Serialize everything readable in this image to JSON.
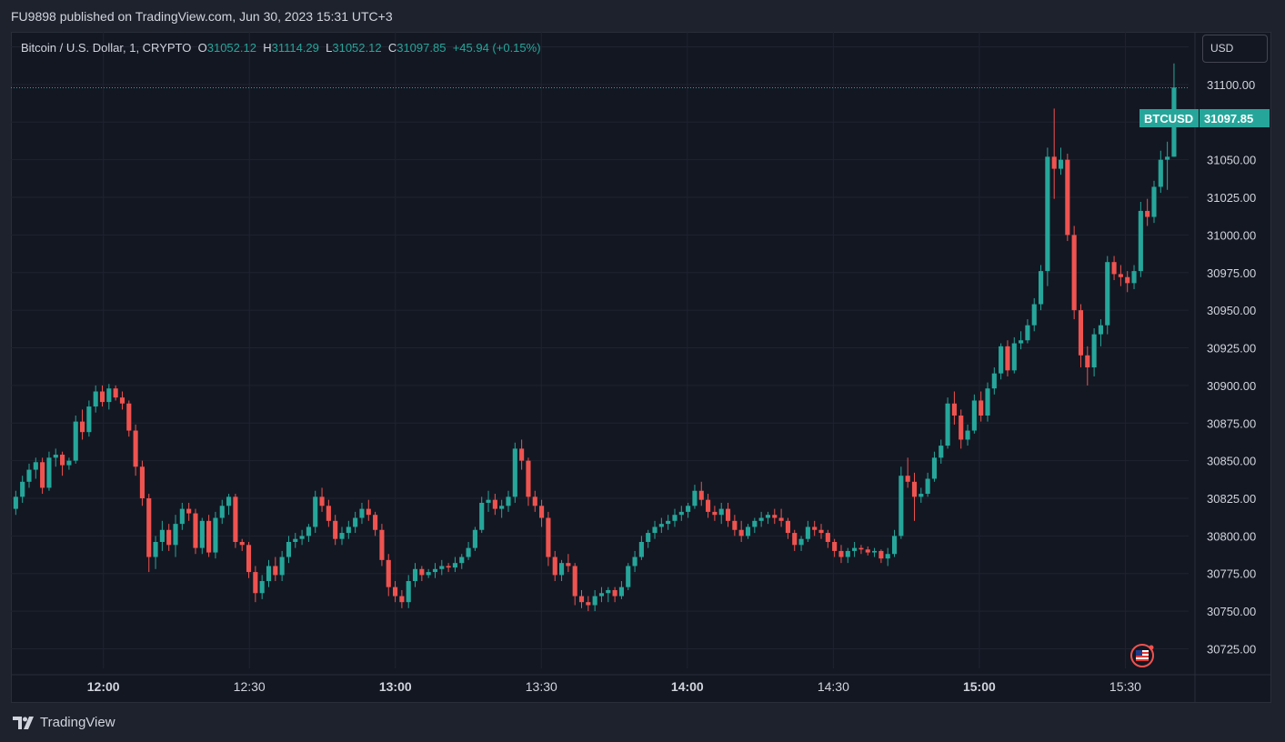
{
  "header": {
    "published_text": "FU9898 published on TradingView.com, Jun 30, 2023 15:31 UTC+3"
  },
  "legend": {
    "symbol": "Bitcoin / U.S. Dollar, 1, CRYPTO",
    "open_label": "O",
    "open": "31052.12",
    "high_label": "H",
    "high": "31114.29",
    "low_label": "L",
    "low": "31052.12",
    "close_label": "C",
    "close": "31097.85",
    "change": "+45.94 (+0.15%)"
  },
  "currency_button": "USD",
  "price_tag": {
    "ticker": "BTCUSD",
    "price": "31097.85"
  },
  "footer": {
    "brand": "TradingView"
  },
  "colors": {
    "up": "#26a69a",
    "down": "#ef5350",
    "background": "#131722",
    "grid": "#1f2330",
    "text": "#d1d4dc"
  },
  "chart_data": {
    "type": "candlestick",
    "xlabel": "",
    "ylabel": "",
    "ylim": [
      30712,
      31135
    ],
    "y_ticks": [
      30725,
      30750,
      30775,
      30800,
      30825,
      30850,
      30875,
      30900,
      30925,
      30950,
      30975,
      31000,
      31025,
      31050,
      31075,
      31100,
      31125
    ],
    "y_tick_labels": [
      "30725.00",
      "30750.00",
      "30775.00",
      "30800.00",
      "30825.00",
      "30850.00",
      "30875.00",
      "30900.00",
      "30925.00",
      "30950.00",
      "30975.00",
      "31000.00",
      "31025.00",
      "31050.00",
      "31075.00",
      "31100.00",
      "31125.00"
    ],
    "x_ticks": [
      "12:00",
      "12:30",
      "13:00",
      "13:30",
      "14:00",
      "14:30",
      "15:00",
      "15:30"
    ],
    "x_tick_minutes": [
      0,
      30,
      60,
      90,
      120,
      150,
      180,
      210
    ],
    "x_range_minutes": [
      -19,
      223
    ],
    "last_price": 31097.85,
    "candles_ohlc": [
      [
        30818,
        30830,
        30814,
        30826
      ],
      [
        30826,
        30840,
        30822,
        30836
      ],
      [
        30836,
        30848,
        30832,
        30844
      ],
      [
        30844,
        30852,
        30838,
        30849
      ],
      [
        30849,
        30852,
        30828,
        30832
      ],
      [
        30832,
        30856,
        30830,
        30852
      ],
      [
        30852,
        30858,
        30846,
        30854
      ],
      [
        30854,
        30856,
        30840,
        30847
      ],
      [
        30847,
        30852,
        30844,
        30850
      ],
      [
        30850,
        30880,
        30848,
        30876
      ],
      [
        30876,
        30884,
        30864,
        30869
      ],
      [
        30869,
        30890,
        30866,
        30886
      ],
      [
        30886,
        30900,
        30882,
        30896
      ],
      [
        30896,
        30900,
        30886,
        30889
      ],
      [
        30889,
        30901,
        30884,
        30898
      ],
      [
        30898,
        30900,
        30890,
        30892
      ],
      [
        30892,
        30896,
        30884,
        30888
      ],
      [
        30888,
        30890,
        30866,
        30870
      ],
      [
        30870,
        30874,
        30840,
        30846
      ],
      [
        30846,
        30850,
        30820,
        30825
      ],
      [
        30825,
        30828,
        30776,
        30786
      ],
      [
        30786,
        30800,
        30778,
        30796
      ],
      [
        30796,
        30810,
        30790,
        30804
      ],
      [
        30804,
        30808,
        30790,
        30794
      ],
      [
        30794,
        30814,
        30786,
        30808
      ],
      [
        30808,
        30822,
        30804,
        30818
      ],
      [
        30818,
        30822,
        30810,
        30815
      ],
      [
        30815,
        30818,
        30788,
        30792
      ],
      [
        30792,
        30812,
        30788,
        30810
      ],
      [
        30810,
        30814,
        30786,
        30789
      ],
      [
        30789,
        30816,
        30785,
        30812
      ],
      [
        30812,
        30824,
        30808,
        30820
      ],
      [
        30820,
        30828,
        30814,
        30826
      ],
      [
        30826,
        30828,
        30792,
        30796
      ],
      [
        30796,
        30798,
        30790,
        30794
      ],
      [
        30794,
        30796,
        30772,
        30776
      ],
      [
        30776,
        30780,
        30756,
        30762
      ],
      [
        30762,
        30774,
        30758,
        30770
      ],
      [
        30770,
        30784,
        30766,
        30780
      ],
      [
        30780,
        30786,
        30770,
        30774
      ],
      [
        30774,
        30790,
        30770,
        30786
      ],
      [
        30786,
        30800,
        30782,
        30796
      ],
      [
        30796,
        30802,
        30792,
        30798
      ],
      [
        30798,
        30804,
        30794,
        30800
      ],
      [
        30800,
        30808,
        30796,
        30806
      ],
      [
        30806,
        30830,
        30802,
        30826
      ],
      [
        30826,
        30832,
        30816,
        30820
      ],
      [
        30820,
        30824,
        30806,
        30810
      ],
      [
        30810,
        30814,
        30794,
        30798
      ],
      [
        30798,
        30806,
        30794,
        30802
      ],
      [
        30802,
        30810,
        30798,
        30806
      ],
      [
        30806,
        30816,
        30802,
        30812
      ],
      [
        30812,
        30822,
        30808,
        30818
      ],
      [
        30818,
        30824,
        30810,
        30814
      ],
      [
        30814,
        30816,
        30800,
        30804
      ],
      [
        30804,
        30808,
        30780,
        30784
      ],
      [
        30784,
        30788,
        30760,
        30766
      ],
      [
        30766,
        30770,
        30756,
        30760
      ],
      [
        30760,
        30764,
        30752,
        30756
      ],
      [
        30756,
        30774,
        30752,
        30770
      ],
      [
        30770,
        30782,
        30766,
        30778
      ],
      [
        30778,
        30780,
        30770,
        30774
      ],
      [
        30774,
        30778,
        30772,
        30776
      ],
      [
        30776,
        30782,
        30772,
        30778
      ],
      [
        30778,
        30784,
        30774,
        30780
      ],
      [
        30780,
        30782,
        30776,
        30779
      ],
      [
        30779,
        30786,
        30776,
        30782
      ],
      [
        30782,
        30788,
        30778,
        30786
      ],
      [
        30786,
        30796,
        30784,
        30792
      ],
      [
        30792,
        30806,
        30790,
        30804
      ],
      [
        30804,
        30826,
        30802,
        30822
      ],
      [
        30822,
        30830,
        30816,
        30824
      ],
      [
        30824,
        30828,
        30814,
        30818
      ],
      [
        30818,
        30824,
        30812,
        30820
      ],
      [
        30820,
        30830,
        30816,
        30826
      ],
      [
        30826,
        30862,
        30822,
        30858
      ],
      [
        30858,
        30864,
        30844,
        30850
      ],
      [
        30850,
        30852,
        30820,
        30826
      ],
      [
        30826,
        30830,
        30816,
        30820
      ],
      [
        30820,
        30824,
        30806,
        30812
      ],
      [
        30812,
        30816,
        30780,
        30786
      ],
      [
        30786,
        30790,
        30770,
        30774
      ],
      [
        30774,
        30784,
        30770,
        30782
      ],
      [
        30782,
        30788,
        30776,
        30780
      ],
      [
        30780,
        30782,
        30754,
        30760
      ],
      [
        30760,
        30764,
        30752,
        30756
      ],
      [
        30756,
        30760,
        30750,
        30754
      ],
      [
        30754,
        30764,
        30750,
        30760
      ],
      [
        30760,
        30766,
        30756,
        30762
      ],
      [
        30762,
        30766,
        30756,
        30764
      ],
      [
        30764,
        30766,
        30756,
        30760
      ],
      [
        30760,
        30770,
        30758,
        30766
      ],
      [
        30766,
        30782,
        30764,
        30780
      ],
      [
        30780,
        30790,
        30776,
        30786
      ],
      [
        30786,
        30800,
        30784,
        30796
      ],
      [
        30796,
        30804,
        30792,
        30802
      ],
      [
        30802,
        30810,
        30798,
        30806
      ],
      [
        30806,
        30812,
        30802,
        30808
      ],
      [
        30808,
        30814,
        30804,
        30810
      ],
      [
        30810,
        30818,
        30806,
        30814
      ],
      [
        30814,
        30820,
        30810,
        30816
      ],
      [
        30816,
        30822,
        30812,
        30820
      ],
      [
        30820,
        30834,
        30818,
        30830
      ],
      [
        30830,
        30836,
        30820,
        30824
      ],
      [
        30824,
        30828,
        30812,
        30816
      ],
      [
        30816,
        30820,
        30810,
        30814
      ],
      [
        30814,
        30822,
        30808,
        30818
      ],
      [
        30818,
        30822,
        30806,
        30810
      ],
      [
        30810,
        30814,
        30800,
        30804
      ],
      [
        30804,
        30810,
        30796,
        30800
      ],
      [
        30800,
        30808,
        30798,
        30806
      ],
      [
        30806,
        30812,
        30802,
        30810
      ],
      [
        30810,
        30816,
        30806,
        30812
      ],
      [
        30812,
        30816,
        30808,
        30814
      ],
      [
        30814,
        30818,
        30808,
        30812
      ],
      [
        30812,
        30818,
        30806,
        30810
      ],
      [
        30810,
        30812,
        30798,
        30802
      ],
      [
        30802,
        30804,
        30790,
        30794
      ],
      [
        30794,
        30800,
        30790,
        30798
      ],
      [
        30798,
        30810,
        30796,
        30806
      ],
      [
        30806,
        30810,
        30800,
        30804
      ],
      [
        30804,
        30808,
        30798,
        30802
      ],
      [
        30802,
        30804,
        30792,
        30796
      ],
      [
        30796,
        30798,
        30786,
        30790
      ],
      [
        30790,
        30794,
        30782,
        30786
      ],
      [
        30786,
        30792,
        30782,
        30790
      ],
      [
        30790,
        30796,
        30786,
        30792
      ],
      [
        30792,
        30794,
        30788,
        30791
      ],
      [
        30791,
        30793,
        30787,
        30789
      ],
      [
        30789,
        30792,
        30786,
        30790
      ],
      [
        30790,
        30791,
        30782,
        30785
      ],
      [
        30785,
        30792,
        30780,
        30788
      ],
      [
        30788,
        30804,
        30786,
        30800
      ],
      [
        30800,
        30846,
        30798,
        30840
      ],
      [
        30840,
        30852,
        30832,
        30836
      ],
      [
        30836,
        30842,
        30810,
        30826
      ],
      [
        30826,
        30832,
        30822,
        30828
      ],
      [
        30828,
        30842,
        30826,
        30838
      ],
      [
        30838,
        30856,
        30836,
        30852
      ],
      [
        30852,
        30864,
        30848,
        30860
      ],
      [
        30860,
        30892,
        30858,
        30888
      ],
      [
        30888,
        30896,
        30874,
        30880
      ],
      [
        30880,
        30884,
        30858,
        30864
      ],
      [
        30864,
        30874,
        30860,
        30870
      ],
      [
        30870,
        30894,
        30868,
        30890
      ],
      [
        30890,
        30896,
        30876,
        30880
      ],
      [
        30880,
        30902,
        30876,
        30898
      ],
      [
        30898,
        30912,
        30894,
        30908
      ],
      [
        30908,
        30928,
        30904,
        30926
      ],
      [
        30926,
        30930,
        30906,
        30910
      ],
      [
        30910,
        30932,
        30908,
        30928
      ],
      [
        30928,
        30936,
        30924,
        30930
      ],
      [
        30930,
        30944,
        30928,
        30940
      ],
      [
        30940,
        30958,
        30936,
        30954
      ],
      [
        30954,
        30980,
        30950,
        30976
      ],
      [
        30976,
        31058,
        30966,
        31052
      ],
      [
        31052,
        31084,
        31024,
        31044
      ],
      [
        31044,
        31058,
        31040,
        31050
      ],
      [
        31050,
        31054,
        30996,
        31000
      ],
      [
        31000,
        31006,
        30944,
        30950
      ],
      [
        30950,
        30954,
        30912,
        30920
      ],
      [
        30920,
        30926,
        30900,
        30912
      ],
      [
        30912,
        30938,
        30906,
        30934
      ],
      [
        30934,
        30944,
        30926,
        30940
      ],
      [
        30940,
        30986,
        30934,
        30982
      ],
      [
        30982,
        30986,
        30970,
        30974
      ],
      [
        30974,
        30980,
        30966,
        30972
      ],
      [
        30972,
        30976,
        30962,
        30968
      ],
      [
        30968,
        30980,
        30964,
        30976
      ],
      [
        30976,
        31022,
        30972,
        31016
      ],
      [
        31016,
        31024,
        31006,
        31012
      ],
      [
        31012,
        31036,
        31008,
        31032
      ],
      [
        31032,
        31056,
        31028,
        31050
      ],
      [
        31050,
        31062,
        31030,
        31052
      ],
      [
        31052,
        31114,
        31052,
        31098
      ]
    ]
  }
}
